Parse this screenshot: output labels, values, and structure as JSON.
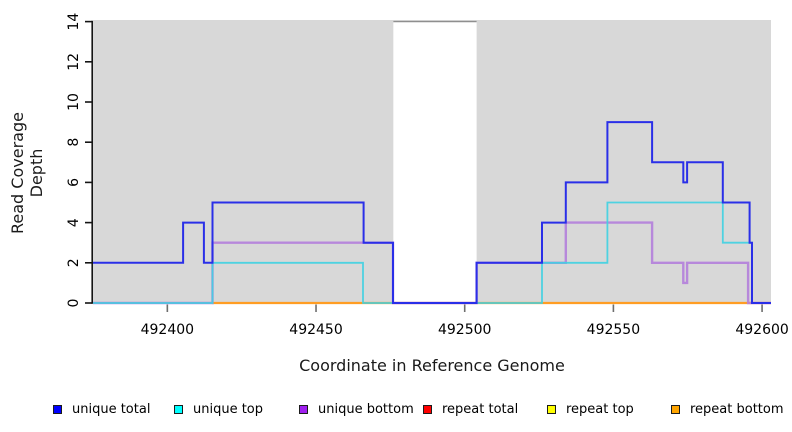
{
  "chart_data": {
    "type": "line",
    "subtype": "step-coverage",
    "title": "",
    "xlabel": "Coordinate in Reference Genome",
    "ylabel": "Read Coverage Depth",
    "xlim": [
      492375,
      492603
    ],
    "ylim": [
      0,
      14.08
    ],
    "x_ticks": [
      492400,
      492450,
      492500,
      492550,
      492600
    ],
    "y_ticks": [
      0,
      2,
      4,
      6,
      8,
      10,
      12,
      14
    ],
    "grid": false,
    "plot_background": "#d8d8d8",
    "gap_region": {
      "from": 492476,
      "to": 492504,
      "color": "#ffffff",
      "border_color": "#8f8f8f"
    },
    "series": [
      {
        "name": "repeat top",
        "line_color": "#ffe400",
        "width": 2,
        "opacity": 1,
        "points": [
          [
            492415,
            0
          ],
          [
            492603,
            0
          ]
        ]
      },
      {
        "name": "repeat total",
        "line_color": "#d9537d",
        "width": 2,
        "opacity": 1,
        "points": [
          [
            492375,
            0
          ],
          [
            492415,
            0
          ]
        ]
      },
      {
        "name": "repeat bottom",
        "line_color": "#ff9d23",
        "width": 2.2,
        "opacity": 1,
        "points": [
          [
            492415,
            0
          ],
          [
            492603,
            0
          ]
        ]
      },
      {
        "name": "unique bottom",
        "line_color": "#b47fdb",
        "width": 2.4,
        "opacity": 0.9,
        "points": [
          [
            492375,
            0
          ],
          [
            492415.2,
            3
          ],
          [
            492475.9,
            0
          ],
          [
            492504,
            2
          ],
          [
            492534,
            4
          ],
          [
            492563,
            2
          ],
          [
            492573.5,
            1
          ],
          [
            492574.8,
            2
          ],
          [
            492595.3,
            0
          ],
          [
            492603,
            0
          ]
        ]
      },
      {
        "name": "unique top",
        "line_color": "#3fd2e2",
        "width": 1.8,
        "opacity": 0.9,
        "points": [
          [
            492375,
            0
          ],
          [
            492415.2,
            2
          ],
          [
            492465.8,
            0
          ],
          [
            492526,
            2
          ],
          [
            492548,
            5
          ],
          [
            492586.8,
            3
          ],
          [
            492596.6,
            0
          ],
          [
            492603,
            0
          ]
        ]
      },
      {
        "name": "unique total",
        "line_color": "#2a2fe8",
        "width": 2,
        "opacity": 1,
        "points": [
          [
            492375,
            2
          ],
          [
            492405.3,
            4
          ],
          [
            492412.3,
            2
          ],
          [
            492415.2,
            5
          ],
          [
            492466,
            3
          ],
          [
            492475.9,
            0
          ],
          [
            492504,
            2
          ],
          [
            492526,
            4
          ],
          [
            492534,
            6
          ],
          [
            492548,
            9
          ],
          [
            492563,
            7
          ],
          [
            492573.5,
            6
          ],
          [
            492574.8,
            7
          ],
          [
            492586.8,
            5
          ],
          [
            492595.8,
            3
          ],
          [
            492596.6,
            0
          ],
          [
            492603,
            0
          ]
        ]
      }
    ],
    "legend_position": "bottom",
    "legend": [
      {
        "label": "unique total",
        "color": "#0000ff"
      },
      {
        "label": "unique top",
        "color": "#00ffff"
      },
      {
        "label": "unique bottom",
        "color": "#a020f0"
      },
      {
        "label": "repeat total",
        "color": "#ff0000"
      },
      {
        "label": "repeat top",
        "color": "#ffff00"
      },
      {
        "label": "repeat bottom",
        "color": "#ffa500"
      }
    ]
  }
}
